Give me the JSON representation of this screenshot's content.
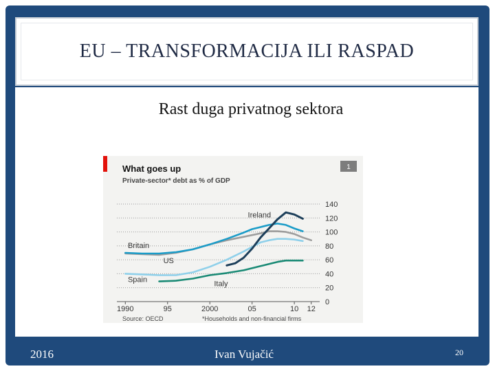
{
  "slide": {
    "title": "EU – TRANSFORMACIJA ILI RASPAD",
    "subtitle": "Rast duga privatnog sektora",
    "footer_left": "2016",
    "footer_center": "Ivan Vujačić",
    "footer_right": "20"
  },
  "colors": {
    "background": "#1f4a7c",
    "accent_red": "#e3120b",
    "ireland": "#1d3f5a",
    "us": "#1b9cc8",
    "britain": "#9d9d9d",
    "spain": "#8fd0ea",
    "italy": "#1a8a75"
  },
  "chart_data": {
    "type": "line",
    "title": "What goes up",
    "subtitle": "Private-sector* debt as % of GDP",
    "badge": "1",
    "source": "Source: OECD",
    "footnote": "*Households and non-financial firms",
    "x_ticks": [
      {
        "value": 1990,
        "label": "1990"
      },
      {
        "value": 1995,
        "label": "95"
      },
      {
        "value": 2000,
        "label": "2000"
      },
      {
        "value": 2005,
        "label": "05"
      },
      {
        "value": 2010,
        "label": "10"
      },
      {
        "value": 2012,
        "label": "12"
      }
    ],
    "xlim": [
      1989,
      2013
    ],
    "ylim": [
      0,
      140
    ],
    "y_ticks": [
      0,
      20,
      40,
      60,
      80,
      100,
      120,
      140
    ],
    "y_axis_side": "right",
    "grid": "dotted horizontal",
    "series": [
      {
        "name": "Ireland",
        "color": "#1d3f5a",
        "width": 3,
        "x": [
          2002,
          2003,
          2004,
          2005,
          2006,
          2007,
          2008,
          2009,
          2010,
          2011
        ],
        "y": [
          52,
          55,
          63,
          76,
          92,
          105,
          118,
          128,
          125,
          119
        ]
      },
      {
        "name": "US",
        "color": "#1b9cc8",
        "width": 2.6,
        "x": [
          1990,
          1992,
          1994,
          1996,
          1998,
          2000,
          2002,
          2004,
          2005,
          2006,
          2007,
          2008,
          2009,
          2010,
          2011
        ],
        "y": [
          70,
          69,
          69,
          71,
          75,
          82,
          90,
          99,
          104,
          107,
          110,
          112,
          110,
          105,
          101
        ]
      },
      {
        "name": "Britain",
        "color": "#9d9d9d",
        "width": 2.6,
        "x": [
          1990,
          1992,
          1994,
          1996,
          1998,
          2000,
          2002,
          2004,
          2006,
          2007,
          2008,
          2009,
          2010,
          2011,
          2012
        ],
        "y": [
          69,
          68,
          67,
          70,
          75,
          82,
          88,
          93,
          98,
          101,
          101,
          100,
          97,
          92,
          88
        ]
      },
      {
        "name": "Spain",
        "color": "#8fd0ea",
        "width": 2.6,
        "x": [
          1990,
          1992,
          1994,
          1996,
          1998,
          2000,
          2002,
          2004,
          2006,
          2007,
          2008,
          2009,
          2010,
          2011
        ],
        "y": [
          40,
          39,
          38,
          38,
          42,
          50,
          60,
          72,
          85,
          88,
          90,
          90,
          89,
          87
        ]
      },
      {
        "name": "Italy",
        "color": "#1a8a75",
        "width": 2.6,
        "x": [
          1994,
          1996,
          1998,
          2000,
          2002,
          2004,
          2006,
          2008,
          2009,
          2010,
          2011
        ],
        "y": [
          29,
          30,
          33,
          38,
          41,
          45,
          51,
          57,
          59,
          59,
          59
        ]
      }
    ]
  }
}
